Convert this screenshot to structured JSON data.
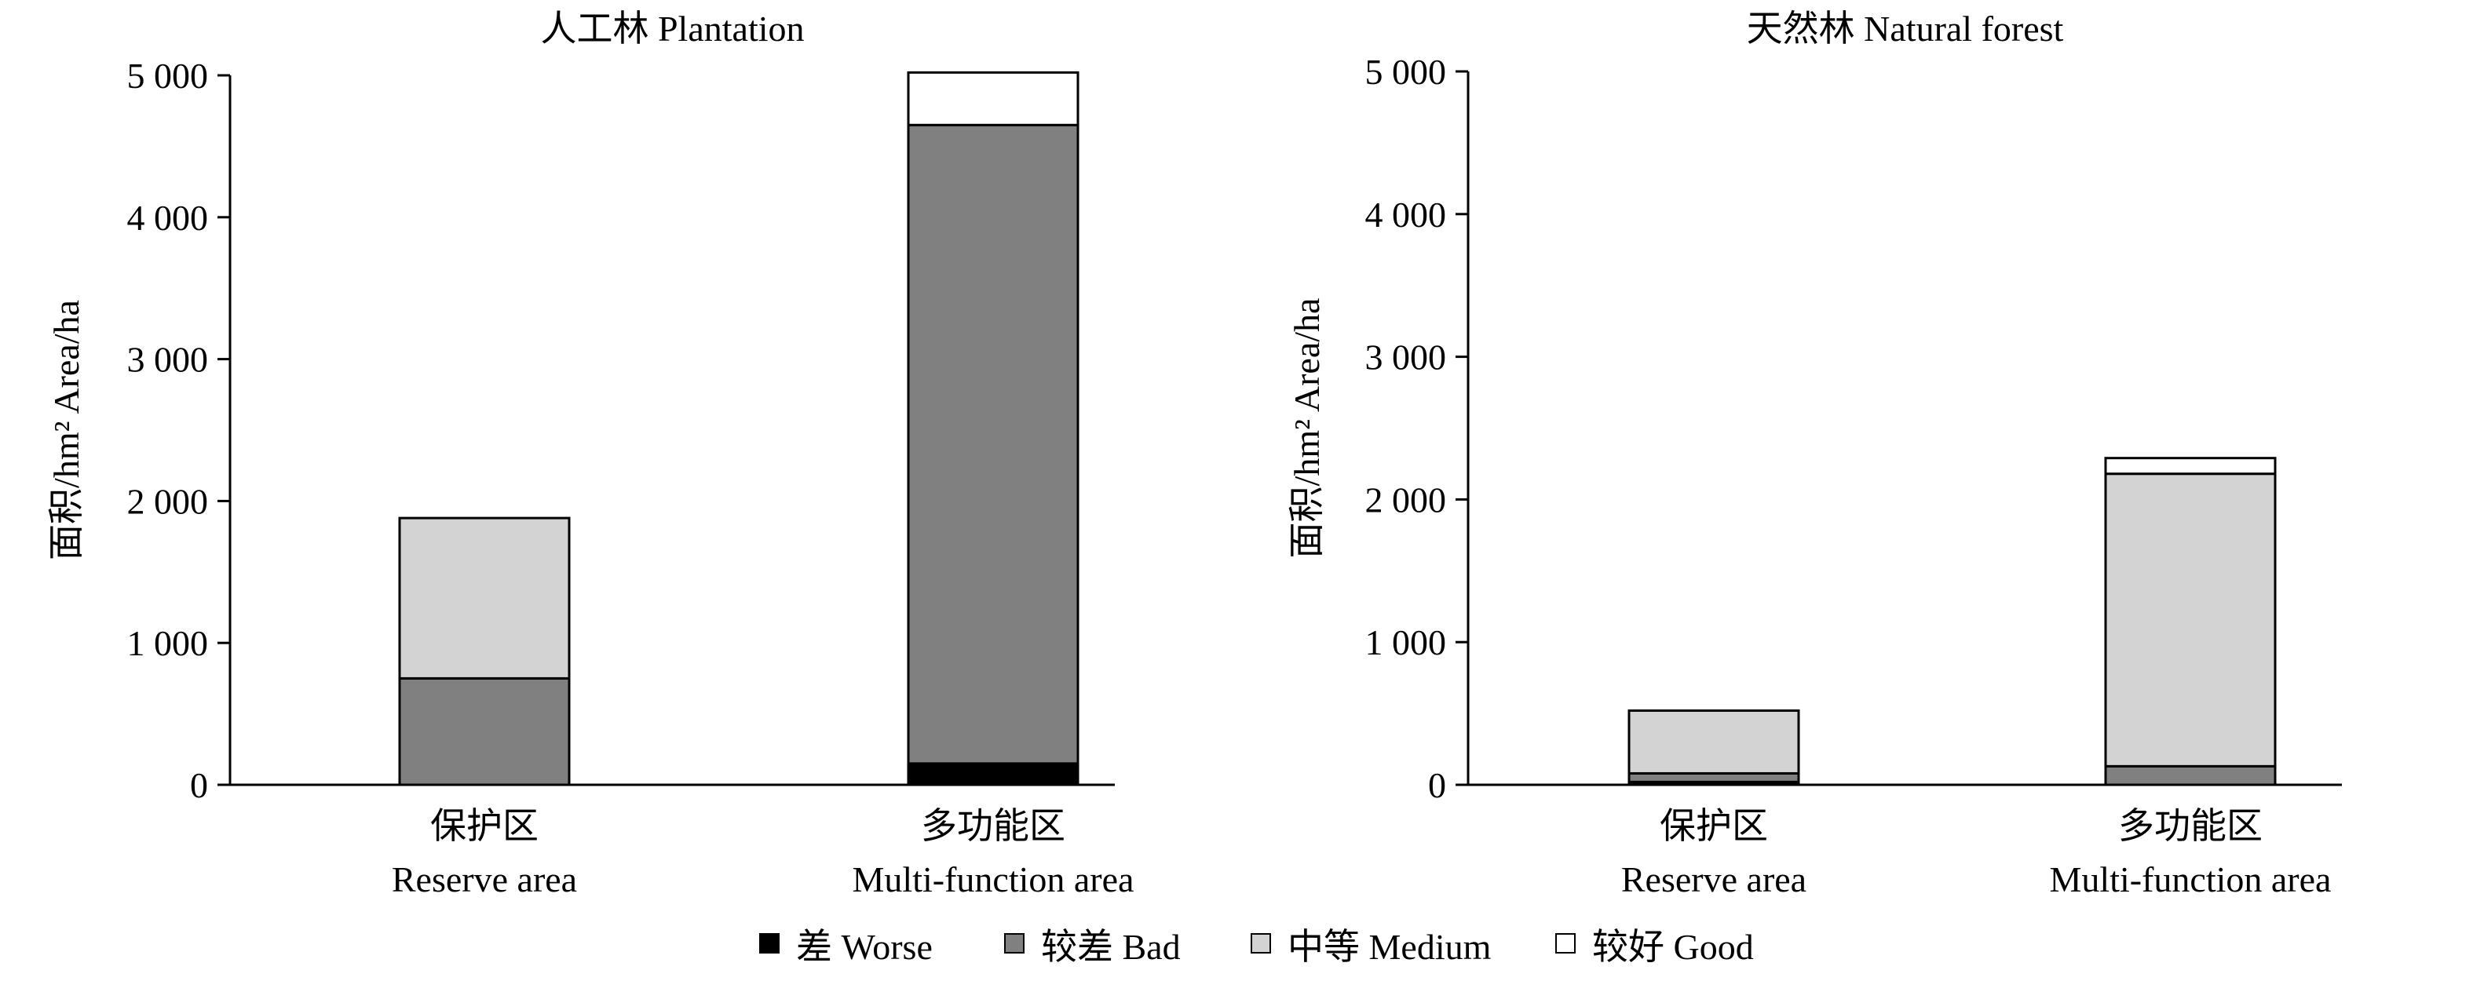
{
  "chart_data": [
    {
      "type": "bar",
      "stacked": true,
      "title": "人工林 Plantation",
      "ylabel": "面积/hm² Area/ha",
      "ylim": [
        0,
        5000
      ],
      "yticks": [
        0,
        1000,
        2000,
        3000,
        4000,
        5000
      ],
      "ytick_labels": [
        "0",
        "1 000",
        "2 000",
        "3 000",
        "4 000",
        "5 000"
      ],
      "categories": [
        {
          "line1": "保护区",
          "line2": "Reserve area"
        },
        {
          "line1": "多功能区",
          "line2": "Multi-function area"
        }
      ],
      "series": [
        {
          "name": "差 Worse",
          "values": [
            0,
            150
          ]
        },
        {
          "name": "较差 Bad",
          "values": [
            750,
            4500
          ]
        },
        {
          "name": "中等 Medium",
          "values": [
            1130,
            0
          ]
        },
        {
          "name": "较好 Good",
          "values": [
            0,
            370
          ]
        }
      ],
      "legend": "bottom",
      "grid": false
    },
    {
      "type": "bar",
      "stacked": true,
      "title": "天然林 Natural forest",
      "ylabel": "面积/hm² Area/ha",
      "ylim": [
        0,
        5000
      ],
      "yticks": [
        0,
        1000,
        2000,
        3000,
        4000,
        5000
      ],
      "ytick_labels": [
        "0",
        "1 000",
        "2 000",
        "3 000",
        "4 000",
        "5 000"
      ],
      "categories": [
        {
          "line1": "保护区",
          "line2": "Reserve area"
        },
        {
          "line1": "多功能区",
          "line2": "Multi-function area"
        }
      ],
      "series": [
        {
          "name": "差 Worse",
          "values": [
            20,
            0
          ]
        },
        {
          "name": "较差 Bad",
          "values": [
            60,
            130
          ]
        },
        {
          "name": "中等 Medium",
          "values": [
            440,
            2050
          ]
        },
        {
          "name": "较好 Good",
          "values": [
            0,
            110
          ]
        }
      ],
      "legend": "bottom",
      "grid": false
    }
  ],
  "legend": {
    "items": [
      {
        "label": "差 Worse",
        "color": "#000000"
      },
      {
        "label": "较差 Bad",
        "color": "#808080"
      },
      {
        "label": "中等 Medium",
        "color": "#d3d3d3"
      },
      {
        "label": "较好 Good",
        "color": "#ffffff"
      }
    ]
  }
}
